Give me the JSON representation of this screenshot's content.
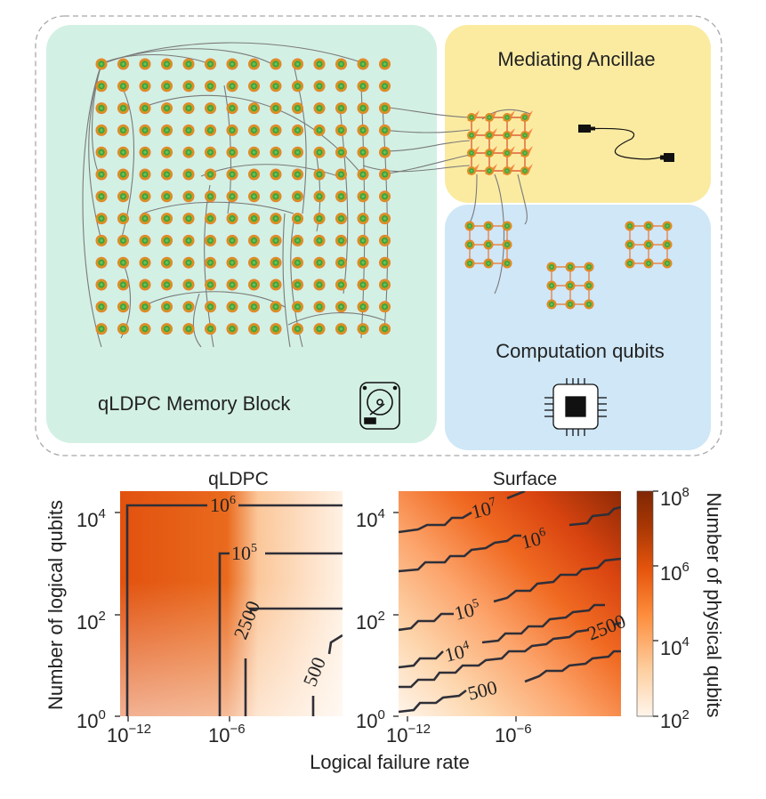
{
  "top_panel": {
    "memory_block": {
      "label": "qLDPC Memory Block",
      "icon": "hard-drive-icon",
      "grid": {
        "rows": 13,
        "cols": 14
      }
    },
    "ancillae": {
      "label": "Mediating Ancillae",
      "icon": "cable-icon",
      "grid": {
        "rows": 4,
        "cols": 4
      }
    },
    "computation": {
      "label": "Computation qubits",
      "icon": "cpu-chip-icon",
      "grid": {
        "rows": 3,
        "cols": 3,
        "blocks": 3
      }
    },
    "colors": {
      "memory_bg": "#d3f0e4",
      "ancilla_bg": "#fbeba1",
      "computation_bg": "#cfe7f7",
      "qubit_ring": "#f08030",
      "qubit_core": "#2e9a3e"
    }
  },
  "chart_data": [
    {
      "type": "heatmap",
      "title": "qLDPC",
      "xlabel": "Logical failure rate",
      "ylabel": "Number of logical qubits",
      "x_scale": "log",
      "y_scale": "log",
      "xlim": [
        1e-13,
        0.01
      ],
      "ylim": [
        1,
        100000.0
      ],
      "x_ticks": [
        {
          "label": "10",
          "exp": "−12"
        },
        {
          "label": "10",
          "exp": "−6"
        }
      ],
      "y_ticks": [
        {
          "label": "10",
          "exp": "0"
        },
        {
          "label": "10",
          "exp": "2"
        },
        {
          "label": "10",
          "exp": "4"
        }
      ],
      "contour_labels": [
        {
          "base": "10",
          "exp": "6"
        },
        {
          "base": "10",
          "exp": "5"
        },
        {
          "base": "2500",
          "exp": ""
        },
        {
          "base": "500",
          "exp": ""
        }
      ],
      "contour_levels": [
        1000000,
        100000,
        2500,
        500
      ]
    },
    {
      "type": "heatmap",
      "title": "Surface",
      "xlabel": "Logical failure rate",
      "ylabel": "Number of logical qubits",
      "x_scale": "log",
      "y_scale": "log",
      "xlim": [
        1e-13,
        0.01
      ],
      "ylim": [
        1,
        100000.0
      ],
      "x_ticks": [
        {
          "label": "10",
          "exp": "−12"
        },
        {
          "label": "10",
          "exp": "−6"
        }
      ],
      "y_ticks": [
        {
          "label": "10",
          "exp": "0"
        },
        {
          "label": "10",
          "exp": "2"
        },
        {
          "label": "10",
          "exp": "4"
        }
      ],
      "contour_labels": [
        {
          "base": "10",
          "exp": "7"
        },
        {
          "base": "10",
          "exp": "6"
        },
        {
          "base": "10",
          "exp": "5"
        },
        {
          "base": "10",
          "exp": "4"
        },
        {
          "base": "2500",
          "exp": ""
        },
        {
          "base": "500",
          "exp": ""
        }
      ],
      "contour_levels": [
        10000000,
        1000000,
        100000,
        10000,
        2500,
        500
      ]
    }
  ],
  "colorbar": {
    "label": "Number of physical qubits",
    "scale": "log",
    "range": [
      100,
      100000000
    ],
    "ticks": [
      {
        "label": "10",
        "exp": "8"
      },
      {
        "label": "10",
        "exp": "6"
      },
      {
        "label": "10",
        "exp": "4"
      },
      {
        "label": "10",
        "exp": "2"
      }
    ],
    "colormap": [
      "#fff5eb",
      "#fdd0a2",
      "#fd8d3c",
      "#e6550d",
      "#a63603",
      "#7f2704"
    ]
  },
  "shared_xlabel": "Logical failure rate",
  "shared_ylabel": "Number of logical qubits"
}
